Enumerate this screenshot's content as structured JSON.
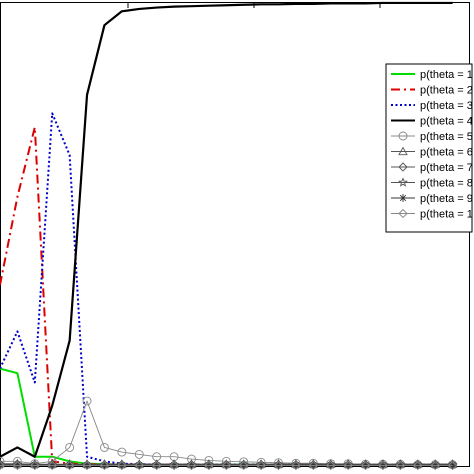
{
  "chart_data": {
    "type": "line",
    "title": "",
    "xlabel": "",
    "ylabel": "",
    "xlim": [
      0,
      27
    ],
    "ylim": [
      0,
      1
    ],
    "grid": false,
    "legend_placement": "right",
    "x": [
      0,
      1,
      2,
      3,
      4,
      5,
      6,
      7,
      8,
      9,
      10,
      11,
      12,
      13,
      14,
      15,
      16,
      17,
      18,
      19,
      20,
      21,
      22,
      23,
      24,
      25,
      26
    ],
    "series": [
      {
        "name": "p(theta = 1",
        "color": "#00dd00",
        "dash": "solid",
        "marker": "none",
        "values": [
          0.21,
          0.2,
          0.02,
          0.02,
          0.01,
          0.005,
          0.004,
          0.003,
          0.003,
          0.003,
          0.003,
          0.003,
          0.003,
          0.003,
          0.003,
          0.003,
          0.003,
          0.003,
          0.003,
          0.003,
          0.003,
          0.003,
          0.003,
          0.003,
          0.003,
          0.003,
          0.003
        ]
      },
      {
        "name": "p(theta = 2",
        "color": "#dd0000",
        "dash": "dashdot",
        "marker": "none",
        "values": [
          0.39,
          0.58,
          0.73,
          0.01,
          0.005,
          0.004,
          0.003,
          0.003,
          0.003,
          0.003,
          0.003,
          0.003,
          0.003,
          0.003,
          0.003,
          0.003,
          0.003,
          0.003,
          0.003,
          0.003,
          0.003,
          0.003,
          0.003,
          0.003,
          0.003,
          0.003,
          0.003
        ]
      },
      {
        "name": "p(theta = 3",
        "color": "#0000cc",
        "dash": "dotted",
        "marker": "none",
        "values": [
          0.21,
          0.29,
          0.18,
          0.76,
          0.67,
          0.02,
          0.01,
          0.005,
          0.004,
          0.003,
          0.003,
          0.003,
          0.003,
          0.003,
          0.003,
          0.003,
          0.003,
          0.003,
          0.003,
          0.003,
          0.003,
          0.003,
          0.003,
          0.003,
          0.003,
          0.003,
          0.003
        ]
      },
      {
        "name": "p(theta = 4",
        "color": "#000000",
        "dash": "solid",
        "marker": "none",
        "values": [
          0.02,
          0.04,
          0.02,
          0.13,
          0.27,
          0.8,
          0.95,
          0.98,
          0.985,
          0.988,
          0.99,
          0.991,
          0.992,
          0.993,
          0.994,
          0.995,
          0.995,
          0.996,
          0.996,
          0.997,
          0.997,
          0.997,
          0.998,
          0.998,
          0.998,
          0.998,
          0.998
        ]
      },
      {
        "name": "p(theta = 5",
        "color": "#888888",
        "dash": "solid",
        "marker": "circle",
        "values": [
          0.01,
          0.01,
          0.005,
          0.01,
          0.04,
          0.14,
          0.04,
          0.03,
          0.025,
          0.02,
          0.02,
          0.015,
          0.012,
          0.01,
          0.009,
          0.008,
          0.007,
          0.006,
          0.006,
          0.005,
          0.005,
          0.004,
          0.004,
          0.004,
          0.003,
          0.003,
          0.003
        ]
      },
      {
        "name": "p(theta = 6",
        "color": "#555555",
        "dash": "solid",
        "marker": "triangle",
        "values": [
          0.005,
          0.005,
          0.004,
          0.004,
          0.004,
          0.004,
          0.004,
          0.004,
          0.004,
          0.004,
          0.004,
          0.004,
          0.004,
          0.004,
          0.004,
          0.004,
          0.004,
          0.004,
          0.004,
          0.004,
          0.004,
          0.004,
          0.004,
          0.004,
          0.004,
          0.004,
          0.004
        ]
      },
      {
        "name": "p(theta = 7",
        "color": "#555555",
        "dash": "solid",
        "marker": "diamond",
        "values": [
          0.004,
          0.004,
          0.003,
          0.003,
          0.003,
          0.003,
          0.003,
          0.003,
          0.003,
          0.003,
          0.003,
          0.003,
          0.003,
          0.003,
          0.003,
          0.003,
          0.003,
          0.003,
          0.003,
          0.003,
          0.003,
          0.003,
          0.003,
          0.003,
          0.003,
          0.003,
          0.003
        ]
      },
      {
        "name": "p(theta = 8",
        "color": "#555555",
        "dash": "solid",
        "marker": "star",
        "values": [
          0.003,
          0.003,
          0.003,
          0.003,
          0.003,
          0.003,
          0.003,
          0.003,
          0.003,
          0.003,
          0.003,
          0.003,
          0.003,
          0.003,
          0.003,
          0.003,
          0.003,
          0.003,
          0.003,
          0.003,
          0.003,
          0.003,
          0.003,
          0.003,
          0.003,
          0.003,
          0.003
        ]
      },
      {
        "name": "p(theta = 9",
        "color": "#333333",
        "dash": "solid",
        "marker": "asterisk",
        "values": [
          0.002,
          0.002,
          0.002,
          0.002,
          0.002,
          0.002,
          0.002,
          0.002,
          0.002,
          0.002,
          0.002,
          0.002,
          0.002,
          0.002,
          0.002,
          0.002,
          0.002,
          0.002,
          0.002,
          0.002,
          0.002,
          0.002,
          0.002,
          0.002,
          0.002,
          0.002,
          0.002
        ]
      },
      {
        "name": "p(theta = 1",
        "color": "#888888",
        "dash": "solid",
        "marker": "diamond",
        "values": [
          0.001,
          0.001,
          0.001,
          0.001,
          0.001,
          0.001,
          0.001,
          0.001,
          0.001,
          0.001,
          0.001,
          0.001,
          0.001,
          0.001,
          0.001,
          0.001,
          0.001,
          0.001,
          0.001,
          0.001,
          0.001,
          0.001,
          0.001,
          0.001,
          0.001,
          0.001,
          0.001
        ]
      }
    ]
  }
}
